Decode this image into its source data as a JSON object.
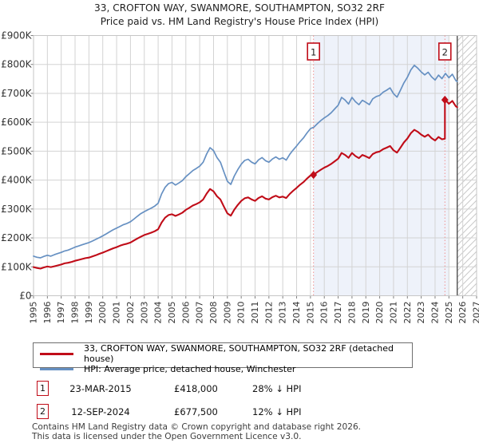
{
  "title": {
    "line1": "33, CROFTON WAY, SWANMORE, SOUTHAMPTON, SO32 2RF",
    "line2": "Price paid vs. HM Land Registry's House Price Index (HPI)"
  },
  "legend": {
    "series1": "33, CROFTON WAY, SWANMORE, SOUTHAMPTON, SO32 2RF (detached house)",
    "series2": "HPI: Average price, detached house, Winchester"
  },
  "annotations": [
    {
      "badge": "1",
      "date": "23-MAR-2015",
      "price": "£418,000",
      "delta": "28% ↓ HPI"
    },
    {
      "badge": "2",
      "date": "12-SEP-2024",
      "price": "£677,500",
      "delta": "12% ↓ HPI"
    }
  ],
  "footer": {
    "line1": "Contains HM Land Registry data © Crown copyright and database right 2026.",
    "line2": "This data is licensed under the Open Government Licence v3.0."
  },
  "chart_data": {
    "type": "line",
    "title": "33, CROFTON WAY, SWANMORE, SOUTHAMPTON, SO32 2RF — Price paid vs. HPI",
    "unit": "GBP thousands",
    "x_axis": {
      "min": 1995,
      "max": 2027,
      "ticks": [
        1995,
        1996,
        1997,
        1998,
        1999,
        2000,
        2001,
        2002,
        2003,
        2004,
        2005,
        2006,
        2007,
        2008,
        2009,
        2010,
        2011,
        2012,
        2013,
        2014,
        2015,
        2016,
        2017,
        2018,
        2019,
        2020,
        2021,
        2022,
        2023,
        2024,
        2025,
        2026,
        2027
      ]
    },
    "y_axis": {
      "min_k": 0,
      "max_k": 900,
      "ticks_k": [
        0,
        100,
        200,
        300,
        400,
        500,
        600,
        700,
        800,
        900
      ],
      "tick_labels": [
        "£0",
        "£100K",
        "£200K",
        "£300K",
        "£400K",
        "£500K",
        "£600K",
        "£700K",
        "£800K",
        "£900K"
      ]
    },
    "grid": true,
    "legend_position": "bottom",
    "shaded_span": {
      "from": 2015.22,
      "to": 2025.0
    },
    "future_span": {
      "from": 2025.6,
      "to": 2027
    },
    "colors": {
      "price_line": "#c00c18",
      "hpi_line": "#6690c2",
      "sale_line": "#f09090",
      "shade": "#eef2fa",
      "grid": "#d3d3d3",
      "border": "#c6c6c6",
      "hatch": "#c9c9c9",
      "boundary": "#4f4f4f",
      "badge_border": "#c00c18"
    },
    "sales": [
      {
        "label": "1",
        "date": "23-MAR-2015",
        "x": 2015.22,
        "price_k": 418,
        "delta_vs_hpi": "28% below HPI"
      },
      {
        "label": "2",
        "date": "12-SEP-2024",
        "x": 2024.71,
        "price_k": 677.5,
        "delta_vs_hpi": "12% below HPI"
      }
    ],
    "series": [
      {
        "id": "hpi-line",
        "name": "HPI: Average price, detached house, Winchester",
        "color": "#6690c2",
        "width": 1.7,
        "points": [
          [
            1995.0,
            137
          ],
          [
            1995.25,
            133
          ],
          [
            1995.5,
            131
          ],
          [
            1995.75,
            136
          ],
          [
            1996.0,
            140
          ],
          [
            1996.25,
            137
          ],
          [
            1996.5,
            142
          ],
          [
            1996.75,
            146
          ],
          [
            1997.0,
            150
          ],
          [
            1997.25,
            155
          ],
          [
            1997.5,
            158
          ],
          [
            1997.75,
            163
          ],
          [
            1998.0,
            168
          ],
          [
            1998.25,
            172
          ],
          [
            1998.5,
            176
          ],
          [
            1998.75,
            180
          ],
          [
            1999.0,
            184
          ],
          [
            1999.25,
            189
          ],
          [
            1999.5,
            195
          ],
          [
            1999.75,
            201
          ],
          [
            2000.0,
            207
          ],
          [
            2000.25,
            214
          ],
          [
            2000.5,
            221
          ],
          [
            2000.75,
            228
          ],
          [
            2001.0,
            234
          ],
          [
            2001.25,
            240
          ],
          [
            2001.5,
            246
          ],
          [
            2001.75,
            250
          ],
          [
            2002.0,
            256
          ],
          [
            2002.25,
            265
          ],
          [
            2002.5,
            275
          ],
          [
            2002.75,
            284
          ],
          [
            2003.0,
            291
          ],
          [
            2003.25,
            297
          ],
          [
            2003.5,
            303
          ],
          [
            2003.75,
            310
          ],
          [
            2004.0,
            320
          ],
          [
            2004.25,
            352
          ],
          [
            2004.5,
            375
          ],
          [
            2004.75,
            388
          ],
          [
            2005.0,
            392
          ],
          [
            2005.25,
            383
          ],
          [
            2005.5,
            390
          ],
          [
            2005.75,
            398
          ],
          [
            2006.0,
            412
          ],
          [
            2006.25,
            422
          ],
          [
            2006.5,
            433
          ],
          [
            2006.75,
            440
          ],
          [
            2007.0,
            448
          ],
          [
            2007.25,
            462
          ],
          [
            2007.5,
            490
          ],
          [
            2007.75,
            512
          ],
          [
            2008.0,
            502
          ],
          [
            2008.25,
            478
          ],
          [
            2008.5,
            462
          ],
          [
            2008.75,
            428
          ],
          [
            2009.0,
            396
          ],
          [
            2009.25,
            385
          ],
          [
            2009.5,
            414
          ],
          [
            2009.75,
            436
          ],
          [
            2010.0,
            455
          ],
          [
            2010.25,
            468
          ],
          [
            2010.5,
            472
          ],
          [
            2010.75,
            462
          ],
          [
            2011.0,
            456
          ],
          [
            2011.25,
            470
          ],
          [
            2011.5,
            478
          ],
          [
            2011.75,
            467
          ],
          [
            2012.0,
            462
          ],
          [
            2012.25,
            473
          ],
          [
            2012.5,
            480
          ],
          [
            2012.75,
            472
          ],
          [
            2013.0,
            477
          ],
          [
            2013.25,
            469
          ],
          [
            2013.5,
            489
          ],
          [
            2013.75,
            504
          ],
          [
            2014.0,
            518
          ],
          [
            2014.25,
            533
          ],
          [
            2014.5,
            546
          ],
          [
            2014.75,
            563
          ],
          [
            2015.0,
            578
          ],
          [
            2015.25,
            583
          ],
          [
            2015.5,
            595
          ],
          [
            2015.75,
            606
          ],
          [
            2016.0,
            615
          ],
          [
            2016.25,
            623
          ],
          [
            2016.5,
            633
          ],
          [
            2016.75,
            646
          ],
          [
            2017.0,
            659
          ],
          [
            2017.25,
            686
          ],
          [
            2017.5,
            677
          ],
          [
            2017.75,
            663
          ],
          [
            2018.0,
            686
          ],
          [
            2018.25,
            671
          ],
          [
            2018.5,
            661
          ],
          [
            2018.75,
            676
          ],
          [
            2019.0,
            669
          ],
          [
            2019.25,
            661
          ],
          [
            2019.5,
            681
          ],
          [
            2019.75,
            689
          ],
          [
            2020.0,
            693
          ],
          [
            2020.25,
            704
          ],
          [
            2020.5,
            711
          ],
          [
            2020.75,
            719
          ],
          [
            2021.0,
            699
          ],
          [
            2021.25,
            687
          ],
          [
            2021.5,
            711
          ],
          [
            2021.75,
            736
          ],
          [
            2022.0,
            756
          ],
          [
            2022.25,
            781
          ],
          [
            2022.5,
            797
          ],
          [
            2022.75,
            787
          ],
          [
            2023.0,
            774
          ],
          [
            2023.25,
            764
          ],
          [
            2023.5,
            773
          ],
          [
            2023.75,
            757
          ],
          [
            2024.0,
            746
          ],
          [
            2024.25,
            763
          ],
          [
            2024.5,
            751
          ],
          [
            2024.75,
            769
          ],
          [
            2025.0,
            754
          ],
          [
            2025.25,
            766
          ],
          [
            2025.5,
            744
          ],
          [
            2025.6,
            741
          ]
        ]
      },
      {
        "id": "price-paid-line",
        "name": "33, CROFTON WAY, SWANMORE, SOUTHAMPTON, SO32 2RF (detached house)",
        "color": "#c00c18",
        "width": 2.1,
        "points": [
          [
            1995.0,
            99
          ],
          [
            1995.25,
            96
          ],
          [
            1995.5,
            94
          ],
          [
            1995.75,
            98
          ],
          [
            1996.0,
            101
          ],
          [
            1996.25,
            99
          ],
          [
            1996.5,
            102
          ],
          [
            1996.75,
            105
          ],
          [
            1997.0,
            108
          ],
          [
            1997.25,
            112
          ],
          [
            1997.5,
            114
          ],
          [
            1997.75,
            117
          ],
          [
            1998.0,
            121
          ],
          [
            1998.25,
            124
          ],
          [
            1998.5,
            127
          ],
          [
            1998.75,
            130
          ],
          [
            1999.0,
            132
          ],
          [
            1999.25,
            136
          ],
          [
            1999.5,
            140
          ],
          [
            1999.75,
            145
          ],
          [
            2000.0,
            149
          ],
          [
            2000.25,
            154
          ],
          [
            2000.5,
            159
          ],
          [
            2000.75,
            164
          ],
          [
            2001.0,
            168
          ],
          [
            2001.25,
            173
          ],
          [
            2001.5,
            177
          ],
          [
            2001.75,
            180
          ],
          [
            2002.0,
            184
          ],
          [
            2002.25,
            191
          ],
          [
            2002.5,
            198
          ],
          [
            2002.75,
            204
          ],
          [
            2003.0,
            210
          ],
          [
            2003.25,
            214
          ],
          [
            2003.5,
            218
          ],
          [
            2003.75,
            223
          ],
          [
            2004.0,
            230
          ],
          [
            2004.25,
            253
          ],
          [
            2004.5,
            270
          ],
          [
            2004.75,
            279
          ],
          [
            2005.0,
            282
          ],
          [
            2005.25,
            276
          ],
          [
            2005.5,
            281
          ],
          [
            2005.75,
            287
          ],
          [
            2006.0,
            297
          ],
          [
            2006.25,
            304
          ],
          [
            2006.5,
            312
          ],
          [
            2006.75,
            317
          ],
          [
            2007.0,
            323
          ],
          [
            2007.25,
            333
          ],
          [
            2007.5,
            353
          ],
          [
            2007.75,
            369
          ],
          [
            2008.0,
            361
          ],
          [
            2008.25,
            344
          ],
          [
            2008.5,
            333
          ],
          [
            2008.75,
            308
          ],
          [
            2009.0,
            285
          ],
          [
            2009.25,
            277
          ],
          [
            2009.5,
            298
          ],
          [
            2009.75,
            314
          ],
          [
            2010.0,
            328
          ],
          [
            2010.25,
            337
          ],
          [
            2010.5,
            340
          ],
          [
            2010.75,
            333
          ],
          [
            2011.0,
            328
          ],
          [
            2011.25,
            338
          ],
          [
            2011.5,
            344
          ],
          [
            2011.75,
            336
          ],
          [
            2012.0,
            333
          ],
          [
            2012.25,
            341
          ],
          [
            2012.5,
            346
          ],
          [
            2012.75,
            340
          ],
          [
            2013.0,
            343
          ],
          [
            2013.25,
            338
          ],
          [
            2013.5,
            352
          ],
          [
            2013.75,
            363
          ],
          [
            2014.0,
            373
          ],
          [
            2014.25,
            384
          ],
          [
            2014.5,
            393
          ],
          [
            2014.75,
            405
          ],
          [
            2015.0,
            416
          ],
          [
            2015.22,
            418
          ],
          [
            2015.5,
            428
          ],
          [
            2015.75,
            436
          ],
          [
            2016.0,
            443
          ],
          [
            2016.25,
            449
          ],
          [
            2016.5,
            456
          ],
          [
            2016.75,
            465
          ],
          [
            2017.0,
            474
          ],
          [
            2017.25,
            494
          ],
          [
            2017.5,
            487
          ],
          [
            2017.75,
            477
          ],
          [
            2018.0,
            494
          ],
          [
            2018.25,
            483
          ],
          [
            2018.5,
            476
          ],
          [
            2018.75,
            487
          ],
          [
            2019.0,
            482
          ],
          [
            2019.25,
            476
          ],
          [
            2019.5,
            490
          ],
          [
            2019.75,
            496
          ],
          [
            2020.0,
            499
          ],
          [
            2020.25,
            507
          ],
          [
            2020.5,
            512
          ],
          [
            2020.75,
            518
          ],
          [
            2021.0,
            503
          ],
          [
            2021.25,
            495
          ],
          [
            2021.5,
            512
          ],
          [
            2021.75,
            530
          ],
          [
            2022.0,
            544
          ],
          [
            2022.25,
            562
          ],
          [
            2022.5,
            574
          ],
          [
            2022.75,
            567
          ],
          [
            2023.0,
            557
          ],
          [
            2023.25,
            550
          ],
          [
            2023.5,
            557
          ],
          [
            2023.75,
            545
          ],
          [
            2024.0,
            537
          ],
          [
            2024.25,
            549
          ],
          [
            2024.5,
            541
          ],
          [
            2024.71,
            543
          ],
          [
            2024.71,
            677.5
          ],
          [
            2024.75,
            677
          ],
          [
            2025.0,
            664
          ],
          [
            2025.25,
            674
          ],
          [
            2025.5,
            655
          ],
          [
            2025.6,
            652
          ]
        ]
      }
    ]
  }
}
